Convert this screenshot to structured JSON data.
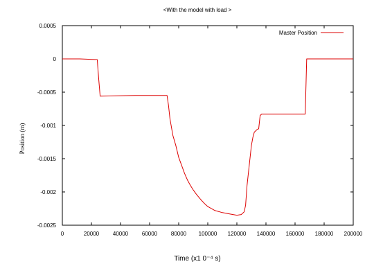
{
  "chart_data": {
    "type": "line",
    "title": "<With the model with load >",
    "xlabel": "Time (x1 0⁻⁴   s)",
    "ylabel": "Position (m)",
    "xlim": [
      0,
      200000
    ],
    "ylim": [
      -0.0025,
      0.0005
    ],
    "xticks": [
      0,
      20000,
      40000,
      60000,
      80000,
      100000,
      120000,
      140000,
      160000,
      180000,
      200000
    ],
    "yticks": [
      0.0005,
      0,
      -0.0005,
      -0.001,
      -0.0015,
      -0.002,
      -0.0025
    ],
    "xtick_labels": [
      "0",
      "20000",
      "40000",
      "60000",
      "80000",
      "100000",
      "120000",
      "140000",
      "160000",
      "180000",
      "200000"
    ],
    "ytick_labels": [
      "0.0005",
      "0",
      "-0.0005",
      "-0.001",
      "-0.0015",
      "-0.002",
      "-0.0025"
    ],
    "legend_position": "top-right",
    "grid": false,
    "series": [
      {
        "name": "Master Position",
        "color": "#dd0000",
        "x": [
          0,
          12000,
          24000,
          25000,
          26000,
          50000,
          72000,
          73000,
          74000,
          76000,
          78000,
          80000,
          82000,
          84000,
          86000,
          88000,
          90000,
          92000,
          95000,
          98000,
          100000,
          105000,
          110000,
          115000,
          120000,
          123000,
          125000,
          126000,
          127000,
          128000,
          129000,
          130000,
          131000,
          132000,
          133000,
          134000,
          135000,
          136000,
          137000,
          167000,
          168000,
          200000
        ],
        "y": [
          0,
          0,
          -1e-05,
          -0.0003,
          -0.00056,
          -0.00055,
          -0.00055,
          -0.0007,
          -0.0009,
          -0.00115,
          -0.0013,
          -0.00148,
          -0.0016,
          -0.00172,
          -0.00182,
          -0.0019,
          -0.00197,
          -0.00203,
          -0.00211,
          -0.00218,
          -0.00222,
          -0.00228,
          -0.00231,
          -0.00233,
          -0.00235,
          -0.00234,
          -0.0023,
          -0.0022,
          -0.0019,
          -0.0017,
          -0.0015,
          -0.0013,
          -0.00118,
          -0.0011,
          -0.00108,
          -0.00106,
          -0.00105,
          -0.00085,
          -0.00083,
          -0.00083,
          0,
          0
        ]
      }
    ]
  }
}
